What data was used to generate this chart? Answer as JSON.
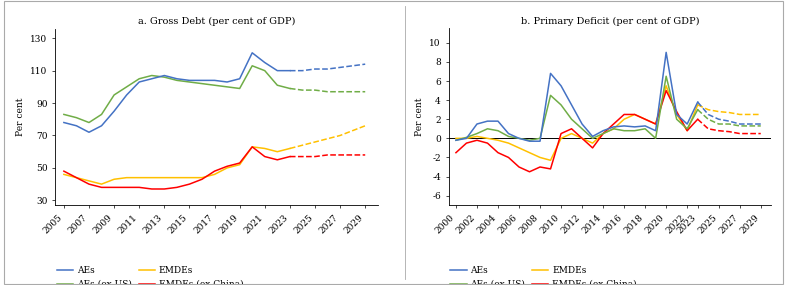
{
  "chart_a": {
    "title": "a. Gross Debt (per cent of GDP)",
    "ylabel": "Per cent",
    "yticks": [
      30,
      50,
      70,
      90,
      110,
      130
    ],
    "ylim": [
      27,
      136
    ],
    "solid_years": [
      2005,
      2006,
      2007,
      2008,
      2009,
      2010,
      2011,
      2012,
      2013,
      2014,
      2015,
      2016,
      2017,
      2018,
      2019,
      2020,
      2021,
      2022,
      2023
    ],
    "dashed_years": [
      2023,
      2024,
      2025,
      2026,
      2027,
      2028,
      2029
    ],
    "xticks": [
      2005,
      2007,
      2009,
      2011,
      2013,
      2015,
      2017,
      2019,
      2021,
      2023,
      2025,
      2027,
      2029
    ],
    "xlim": [
      2004.3,
      2030.0
    ],
    "AEs_solid": [
      78,
      76,
      72,
      76,
      85,
      95,
      103,
      105,
      107,
      105,
      104,
      104,
      104,
      103,
      105,
      121,
      115,
      110,
      110
    ],
    "AEs_ex_US_solid": [
      83,
      81,
      78,
      83,
      95,
      100,
      105,
      107,
      106,
      104,
      103,
      102,
      101,
      100,
      99,
      113,
      110,
      101,
      99
    ],
    "EMDEs_solid": [
      46,
      44,
      42,
      40,
      43,
      44,
      44,
      44,
      44,
      44,
      44,
      44,
      46,
      50,
      52,
      63,
      62,
      60,
      62
    ],
    "EMDEs_ex_China_solid": [
      48,
      44,
      40,
      38,
      38,
      38,
      38,
      37,
      37,
      38,
      40,
      43,
      48,
      51,
      53,
      63,
      57,
      55,
      57
    ],
    "AEs_dashed": [
      110,
      110,
      111,
      111,
      112,
      113,
      114
    ],
    "AEs_ex_US_dashed": [
      99,
      98,
      98,
      97,
      97,
      97,
      97
    ],
    "EMDEs_dashed": [
      62,
      64,
      66,
      68,
      70,
      73,
      76
    ],
    "EMDEs_ex_China_dashed": [
      57,
      57,
      57,
      58,
      58,
      58,
      58
    ]
  },
  "chart_b": {
    "title": "b. Primary Deficit (per cent of GDP)",
    "ylabel": "Per cent",
    "yticks": [
      -6,
      -4,
      -2,
      0,
      2,
      4,
      6,
      8,
      10
    ],
    "ylim": [
      -7.0,
      11.5
    ],
    "solid_years": [
      2000,
      2001,
      2002,
      2003,
      2004,
      2005,
      2006,
      2007,
      2008,
      2009,
      2010,
      2011,
      2012,
      2013,
      2014,
      2015,
      2016,
      2017,
      2018,
      2019,
      2020,
      2021,
      2022,
      2023
    ],
    "dashed_years": [
      2023,
      2024,
      2025,
      2026,
      2027,
      2028,
      2029
    ],
    "xticks": [
      2000,
      2002,
      2004,
      2006,
      2008,
      2010,
      2012,
      2014,
      2016,
      2018,
      2020,
      2022,
      2023,
      2025,
      2027,
      2029
    ],
    "xlim": [
      1999.3,
      2030.0
    ],
    "AEs_solid": [
      -0.2,
      0.0,
      1.5,
      1.8,
      1.8,
      0.5,
      0.0,
      -0.3,
      -0.3,
      6.8,
      5.5,
      3.5,
      1.5,
      0.2,
      0.8,
      1.2,
      1.3,
      1.2,
      1.3,
      0.8,
      9.0,
      2.5,
      1.5,
      3.8
    ],
    "AEs_ex_US_solid": [
      -0.2,
      0.1,
      0.5,
      1.0,
      0.8,
      0.2,
      0.0,
      -0.2,
      0.0,
      4.5,
      3.5,
      2.0,
      1.0,
      0.0,
      0.5,
      1.0,
      0.8,
      0.8,
      1.0,
      0.0,
      6.5,
      2.0,
      1.0,
      3.0
    ],
    "EMDEs_solid": [
      0.0,
      0.0,
      0.2,
      0.0,
      -0.2,
      -0.5,
      -1.0,
      -1.5,
      -2.0,
      -2.3,
      0.0,
      0.5,
      0.0,
      -0.5,
      0.5,
      1.0,
      2.0,
      2.5,
      2.0,
      1.5,
      5.5,
      2.5,
      0.8,
      3.5
    ],
    "EMDEs_ex_China_solid": [
      -1.5,
      -0.5,
      -0.2,
      -0.5,
      -1.5,
      -2.0,
      -3.0,
      -3.5,
      -3.0,
      -3.2,
      0.5,
      1.0,
      0.0,
      -1.0,
      0.5,
      1.5,
      2.5,
      2.5,
      2.0,
      1.5,
      5.0,
      2.8,
      0.8,
      2.0
    ],
    "AEs_dashed": [
      3.8,
      2.5,
      2.0,
      1.8,
      1.5,
      1.5,
      1.5
    ],
    "AEs_ex_US_dashed": [
      3.0,
      2.0,
      1.5,
      1.5,
      1.3,
      1.3,
      1.3
    ],
    "EMDEs_dashed": [
      3.5,
      3.0,
      2.8,
      2.7,
      2.5,
      2.5,
      2.5
    ],
    "EMDEs_ex_China_dashed": [
      2.0,
      1.0,
      0.8,
      0.7,
      0.5,
      0.5,
      0.5
    ]
  },
  "colors": {
    "AEs": "#4472c4",
    "AEs_ex_US": "#70ad47",
    "EMDEs": "#ffc000",
    "EMDEs_ex_China": "#ff0000"
  },
  "legend_labels": [
    "AEs",
    "AEs (ex-US)",
    "EMDEs",
    "EMDEs (ex-China)"
  ]
}
